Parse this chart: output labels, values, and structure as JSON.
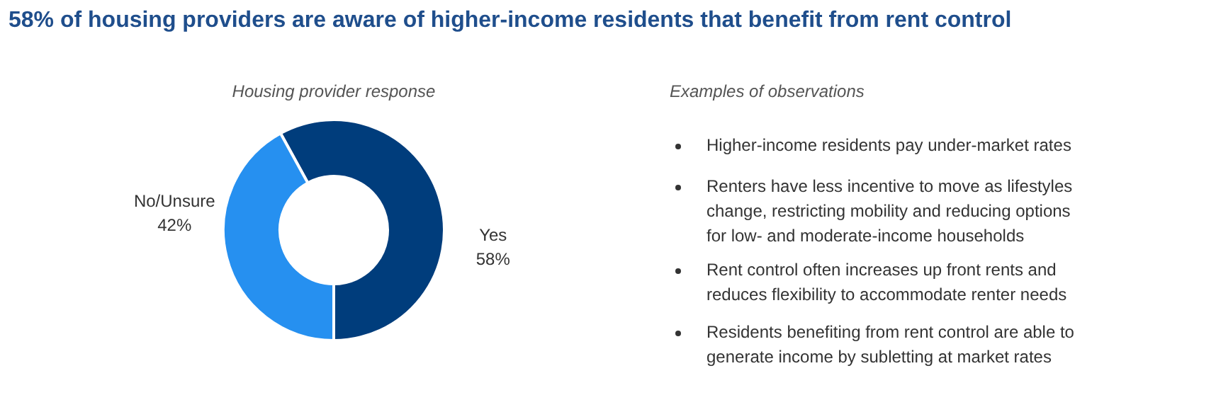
{
  "chart_data": [
    {
      "type": "donut",
      "title": "58% of housing providers are aware of higher-income residents that benefit from rent control",
      "subtitle": "Housing provider response",
      "categories": [
        "Yes",
        "No/Unsure"
      ],
      "values": [
        58,
        42
      ],
      "colors": [
        "#003d7c",
        "#2690f0"
      ],
      "value_labels": [
        "58%",
        "42%"
      ]
    },
    {
      "type": "other",
      "title": "Examples of observations",
      "annotations": [
        "Higher-income residents pay under-market rates",
        "Renters have less incentive to move as lifestyles\nchange, restricting mobility and reducing options\nfor low- and moderate-income households",
        "Rent control often increases up front rents and\nreduces flexibility to accommodate renter needs",
        "Residents benefiting from rent control are able to\ngenerate income by subletting at market rates"
      ]
    }
  ]
}
